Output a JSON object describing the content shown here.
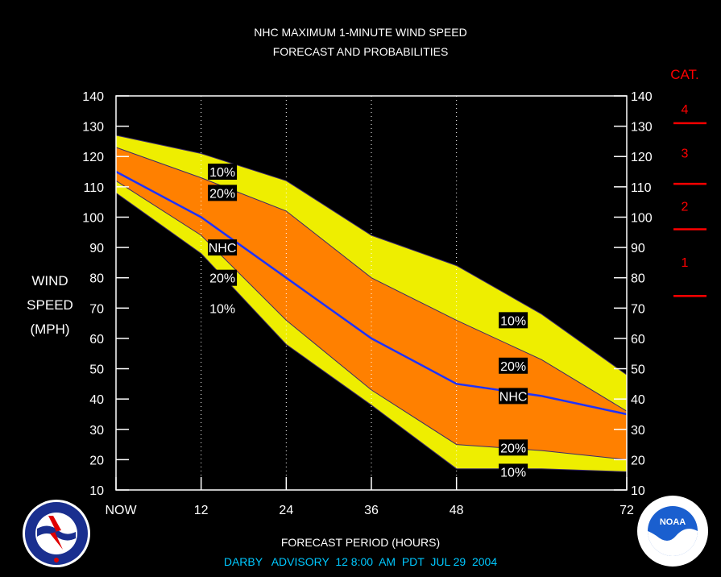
{
  "title_line1": "NHC MAXIMUM 1-MINUTE WIND SPEED",
  "title_line2": "FORECAST AND PROBABILITIES",
  "ylabel_lines": [
    "WIND",
    "SPEED",
    "(MPH)"
  ],
  "xlabel": "FORECAST PERIOD (HOURS)",
  "advisory": "DARBY   ADVISORY  12 8:00  AM  PDT  JUL 29  2004",
  "colors": {
    "background": "#000000",
    "band10": "#eeee00",
    "band20": "#ff8000",
    "nhc_line": "#1e32ff",
    "category": "#ff0000",
    "advisory_text": "#00c8ff",
    "grid": "#ffffff"
  },
  "category_scale": {
    "heading": "CAT.",
    "labels": [
      "4",
      "3",
      "2",
      "1"
    ],
    "thresholds_mph": [
      131,
      111,
      96,
      74
    ]
  },
  "chart_data": {
    "type": "area",
    "x_tick_values": [
      0,
      12,
      24,
      36,
      48,
      72
    ],
    "x_tick_labels": [
      "NOW",
      "12",
      "24",
      "36",
      "48",
      "72"
    ],
    "xlim": [
      0,
      72
    ],
    "ylim": [
      10,
      140
    ],
    "y_ticks": [
      10,
      20,
      30,
      40,
      50,
      60,
      70,
      80,
      90,
      100,
      110,
      120,
      130,
      140
    ],
    "grid": "dotted vertical at 12, 24, 36, 48",
    "x": [
      0,
      12,
      24,
      36,
      48,
      60,
      72
    ],
    "series": [
      {
        "name": "10%",
        "values": [
          127,
          121,
          112,
          94,
          84,
          68,
          48
        ]
      },
      {
        "name": "20%",
        "values": [
          123,
          113,
          102,
          80,
          66,
          53,
          36
        ]
      },
      {
        "name": "NHC",
        "values": [
          115,
          100,
          80,
          60,
          45,
          41,
          35
        ]
      },
      {
        "name": "20%",
        "values": [
          112,
          94,
          66,
          43,
          25,
          23,
          20
        ]
      },
      {
        "name": "10%",
        "values": [
          108,
          88,
          58,
          38,
          17,
          17,
          16
        ]
      }
    ],
    "annotations": [
      {
        "text": "10%",
        "x": 15,
        "y": 115
      },
      {
        "text": "20%",
        "x": 15,
        "y": 108
      },
      {
        "text": "NHC",
        "x": 15,
        "y": 90
      },
      {
        "text": "20%",
        "x": 15,
        "y": 80
      },
      {
        "text": "10%",
        "x": 15,
        "y": 70
      },
      {
        "text": "10%",
        "x": 56,
        "y": 66
      },
      {
        "text": "20%",
        "x": 56,
        "y": 51
      },
      {
        "text": "NHC",
        "x": 56,
        "y": 41
      },
      {
        "text": "20%",
        "x": 56,
        "y": 24
      },
      {
        "text": "10%",
        "x": 56,
        "y": 16
      }
    ]
  }
}
